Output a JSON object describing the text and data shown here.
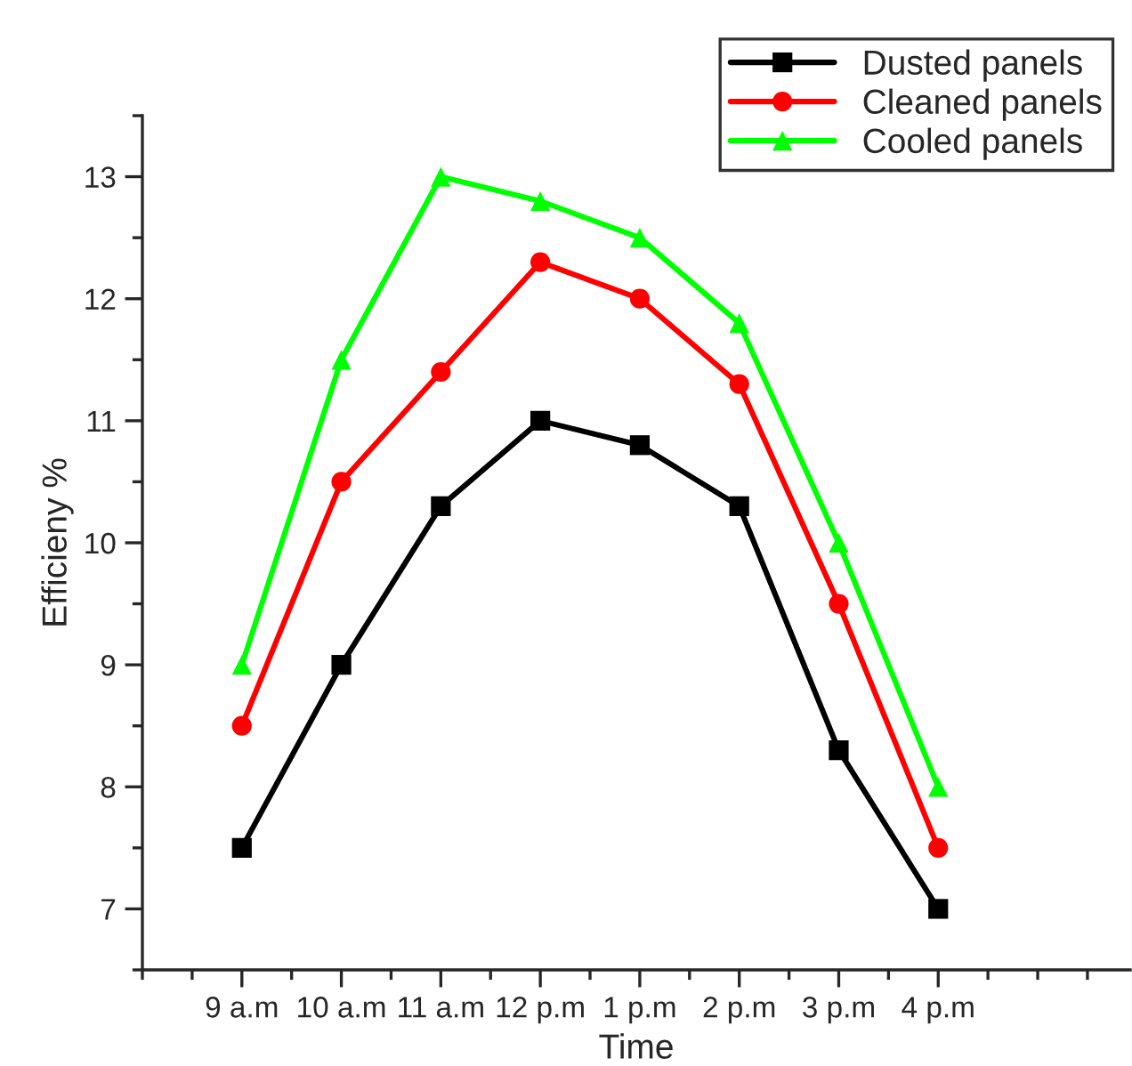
{
  "chart_data": {
    "type": "line",
    "xlabel": "Time",
    "ylabel": "Efficieny %",
    "categories": [
      "9 a.m",
      "10 a.m",
      "11 a.m",
      "12 p.m",
      "1 p.m",
      "2 p.m",
      "3 p.m",
      "4 p.m"
    ],
    "series": [
      {
        "name": "Dusted panels",
        "color": "#000000",
        "marker": "square",
        "values": [
          7.5,
          9,
          10.3,
          11,
          10.8,
          10.3,
          8.3,
          7
        ]
      },
      {
        "name": "Cleaned panels",
        "color": "#ff0000",
        "marker": "circle",
        "values": [
          8.5,
          10.5,
          11.4,
          12.3,
          12,
          11.3,
          9.5,
          7.5
        ]
      },
      {
        "name": "Cooled panels",
        "color": "#00ff00",
        "marker": "triangle",
        "values": [
          9,
          11.5,
          13,
          12.8,
          12.5,
          11.8,
          10,
          8
        ]
      }
    ],
    "ylim": [
      6.5,
      13.5
    ],
    "yticks": [
      7,
      8,
      9,
      10,
      11,
      12,
      13
    ],
    "grid": false,
    "legend": "top right",
    "line_style": "solid"
  }
}
